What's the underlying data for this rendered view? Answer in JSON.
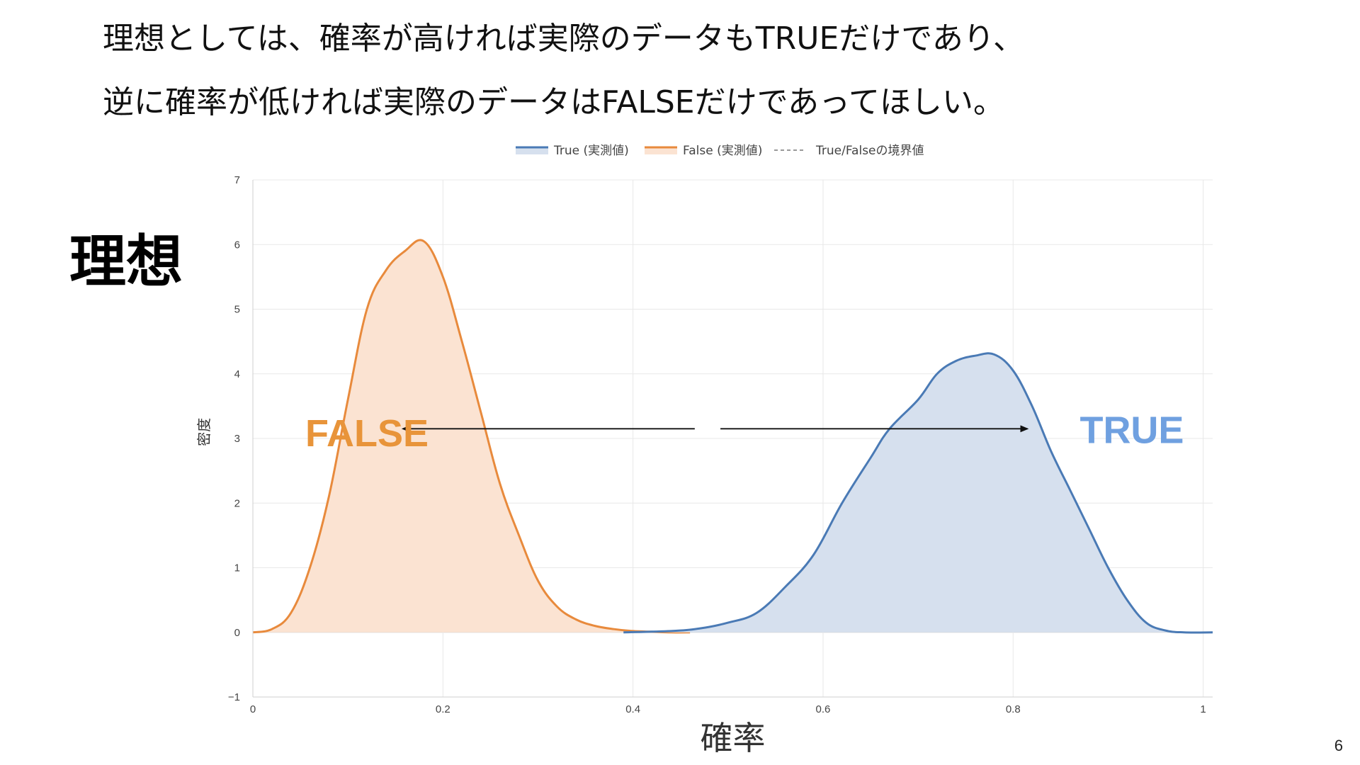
{
  "slide": {
    "line1": "理想としては、確率が高ければ実際のデータもTRUEだけであり、",
    "line2": "逆に確率が低ければ実際のデータはFALSEだけであってほしい。",
    "section_title": "理想",
    "page_number": "6"
  },
  "colors": {
    "true_line": "#4a7ab5",
    "true_fill": "#d6e0ee",
    "false_line": "#e88a3c",
    "false_fill": "#fbe3d2",
    "false_label": "#e8943a",
    "true_label": "#6fa0e0",
    "grid": "#e8e8e8",
    "arrow": "#111111"
  },
  "chart_data": {
    "type": "area",
    "xlabel": "確率",
    "ylabel": "密度",
    "xlim": [
      0,
      1.01
    ],
    "ylim": [
      -1,
      7
    ],
    "x_ticks": [
      0,
      0.2,
      0.4,
      0.6,
      0.8,
      1
    ],
    "x_tick_labels": [
      "0",
      "0.2",
      "0.4",
      "0.6",
      "0.8",
      "1"
    ],
    "y_ticks": [
      -1,
      0,
      1,
      2,
      3,
      4,
      5,
      6,
      7
    ],
    "y_tick_labels": [
      "−1",
      "0",
      "1",
      "2",
      "3",
      "4",
      "5",
      "6",
      "7"
    ],
    "grid": true,
    "legend_position": "top-center",
    "legend": [
      {
        "name": "True (実測値)",
        "style": "solid-fill",
        "color": "#4a7ab5"
      },
      {
        "name": "False (実測値)",
        "style": "solid-fill",
        "color": "#e88a3c"
      },
      {
        "name": "True/Falseの境界値",
        "style": "dashed",
        "color": "#999999"
      }
    ],
    "series": [
      {
        "name": "False (実測値)",
        "x": [
          0,
          0.02,
          0.04,
          0.06,
          0.08,
          0.1,
          0.12,
          0.14,
          0.16,
          0.18,
          0.2,
          0.22,
          0.24,
          0.26,
          0.28,
          0.3,
          0.32,
          0.34,
          0.36,
          0.38,
          0.4,
          0.42,
          0.44,
          0.46
        ],
        "y": [
          0.0,
          0.05,
          0.3,
          1.0,
          2.1,
          3.6,
          5.0,
          5.6,
          5.9,
          6.05,
          5.5,
          4.5,
          3.4,
          2.3,
          1.5,
          0.8,
          0.4,
          0.2,
          0.1,
          0.05,
          0.02,
          0.01,
          0.0,
          0.0
        ]
      },
      {
        "name": "True (実測値)",
        "x": [
          0.39,
          0.44,
          0.47,
          0.5,
          0.53,
          0.56,
          0.59,
          0.62,
          0.65,
          0.67,
          0.7,
          0.72,
          0.74,
          0.76,
          0.78,
          0.8,
          0.82,
          0.84,
          0.86,
          0.88,
          0.9,
          0.92,
          0.94,
          0.96,
          0.98,
          1.01
        ],
        "y": [
          0.0,
          0.02,
          0.06,
          0.15,
          0.3,
          0.7,
          1.2,
          2.0,
          2.7,
          3.15,
          3.6,
          4.0,
          4.2,
          4.28,
          4.3,
          4.05,
          3.5,
          2.8,
          2.2,
          1.6,
          1.0,
          0.5,
          0.15,
          0.03,
          0.0,
          0.0
        ]
      }
    ],
    "annotations": [
      {
        "text": "FALSE",
        "x": 0.12,
        "y": 3.1,
        "color": "#e8943a"
      },
      {
        "text": "TRUE",
        "x": 0.925,
        "y": 3.15,
        "color": "#6fa0e0"
      }
    ],
    "arrows": [
      {
        "direction": "left",
        "from_x": 0.465,
        "to_x": 0.158,
        "y": 3.15
      },
      {
        "direction": "right",
        "from_x": 0.492,
        "to_x": 0.815,
        "y": 3.15
      }
    ]
  }
}
